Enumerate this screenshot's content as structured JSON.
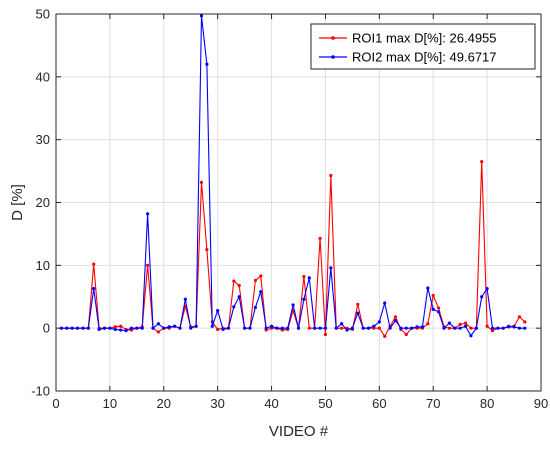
{
  "chart_data": {
    "type": "line",
    "xlabel": "VIDEO #",
    "ylabel": "D [%]",
    "xlim": [
      0,
      90
    ],
    "ylim": [
      -10,
      50
    ],
    "xticks": [
      0,
      10,
      20,
      30,
      40,
      50,
      60,
      70,
      80,
      90
    ],
    "yticks": [
      -10,
      0,
      10,
      20,
      30,
      40,
      50
    ],
    "xtick_labels": [
      "0",
      "10",
      "20",
      "30",
      "40",
      "50",
      "60",
      "70",
      "80",
      "90"
    ],
    "ytick_labels": [
      "-10",
      "0",
      "10",
      "20",
      "30",
      "40",
      "50"
    ],
    "grid": true,
    "legend_position": "top-right",
    "x": [
      1,
      2,
      3,
      4,
      5,
      6,
      7,
      8,
      9,
      10,
      11,
      12,
      13,
      14,
      15,
      16,
      17,
      18,
      19,
      20,
      21,
      22,
      23,
      24,
      25,
      26,
      27,
      28,
      29,
      30,
      31,
      32,
      33,
      34,
      35,
      36,
      37,
      38,
      39,
      40,
      41,
      42,
      43,
      44,
      45,
      46,
      47,
      48,
      49,
      50,
      51,
      52,
      53,
      54,
      55,
      56,
      57,
      58,
      59,
      60,
      61,
      62,
      63,
      64,
      65,
      66,
      67,
      68,
      69,
      70,
      71,
      72,
      73,
      74,
      75,
      76,
      77,
      78,
      79,
      80,
      81,
      82,
      83,
      84,
      85,
      86,
      87
    ],
    "series": [
      {
        "name": "ROI1 max D[%]: 26.4955",
        "color": "#ff0000",
        "values": [
          0,
          0,
          0,
          0,
          0,
          0,
          10.2,
          0,
          0,
          0,
          0.2,
          0.3,
          -0.2,
          -0.3,
          0,
          0.2,
          10,
          0,
          -0.6,
          0,
          0,
          0.3,
          0,
          3.5,
          0.2,
          0.3,
          23.2,
          12.5,
          1,
          -0.2,
          0,
          0,
          7.5,
          6.8,
          0,
          0,
          7.6,
          8.3,
          -0.3,
          0,
          0,
          -0.3,
          -0.2,
          2.8,
          0,
          8.2,
          0,
          0,
          14.3,
          -1,
          24.3,
          0,
          0,
          0,
          -0.2,
          3.8,
          0,
          0,
          0,
          0,
          -1.3,
          0.3,
          1.8,
          -0.2,
          -1,
          0,
          0,
          0,
          0.7,
          5.2,
          3.2,
          0.2,
          0,
          0,
          0.6,
          0.8,
          0,
          0,
          26.5,
          0.3,
          -0.4,
          0,
          0,
          0.3,
          0.3,
          1.8,
          1
        ]
      },
      {
        "name": "ROI2 max D[%]: 49.6717",
        "color": "#0000ff",
        "values": [
          0,
          0,
          0,
          0,
          0,
          0,
          6.3,
          -0.2,
          0,
          0,
          -0.2,
          -0.3,
          -0.4,
          0,
          0,
          0,
          18.2,
          0,
          0.7,
          0,
          0.2,
          0.3,
          0,
          4.6,
          0,
          0.3,
          49.7,
          42,
          0.3,
          2.8,
          -0.2,
          0,
          3.4,
          5,
          0,
          0,
          3.3,
          5.8,
          0,
          0.3,
          0,
          0,
          0,
          3.7,
          0,
          4.6,
          8,
          0,
          0,
          0,
          9.6,
          0,
          0.7,
          -0.3,
          0,
          2.4,
          0,
          0,
          0.3,
          1,
          4,
          0,
          1.2,
          0,
          0,
          0,
          0.2,
          0.2,
          6.4,
          3,
          2.6,
          0,
          0.8,
          0,
          0,
          0.3,
          -1.2,
          0,
          5,
          6.3,
          0,
          0,
          0,
          0.2,
          0.2,
          0,
          0
        ]
      }
    ]
  }
}
